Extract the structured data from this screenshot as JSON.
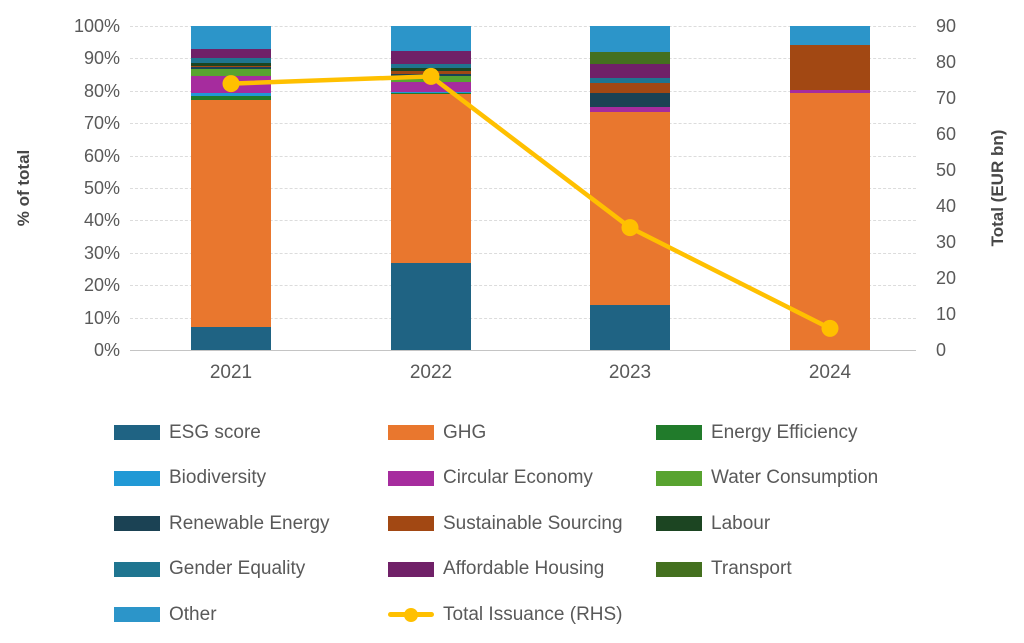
{
  "chart_data": {
    "type": "bar",
    "subtype": "stacked-100-bar-with-line",
    "title": "",
    "categories": [
      "2021",
      "2022",
      "2023",
      "2024"
    ],
    "series": [
      {
        "name": "ESG score",
        "color": "#1F6383",
        "values": [
          7.0,
          27.0,
          14.0,
          0
        ]
      },
      {
        "name": "GHG",
        "color": "#E9772E",
        "values": [
          70.3,
          52.0,
          59.5,
          79.3
        ]
      },
      {
        "name": "Energy Efficiency",
        "color": "#217B2B",
        "values": [
          1.2,
          0.3,
          0,
          0
        ]
      },
      {
        "name": "Biodiversity",
        "color": "#2199D5",
        "values": [
          0.8,
          0.2,
          0,
          0
        ]
      },
      {
        "name": "Circular Economy",
        "color": "#A62C9E",
        "values": [
          5.2,
          3.1,
          1.6,
          0.8
        ]
      },
      {
        "name": "Water Consumption",
        "color": "#58A330",
        "values": [
          2.2,
          1.9,
          0,
          0
        ]
      },
      {
        "name": "Renewable Energy",
        "color": "#1B4254",
        "values": [
          0.8,
          0.6,
          4.1,
          0
        ]
      },
      {
        "name": "Sustainable Sourcing",
        "color": "#A24813",
        "values": [
          0.3,
          0.9,
          3.3,
          14.0
        ]
      },
      {
        "name": "Labour",
        "color": "#1C4522",
        "values": [
          0.8,
          0.9,
          0,
          0
        ]
      },
      {
        "name": "Gender Equality",
        "color": "#1F7590",
        "values": [
          1.6,
          1.5,
          1.3,
          0
        ]
      },
      {
        "name": "Affordable Housing",
        "color": "#702168",
        "values": [
          2.7,
          4.0,
          4.6,
          0
        ]
      },
      {
        "name": "Transport",
        "color": "#44701F",
        "values": [
          0,
          0,
          3.6,
          0
        ]
      },
      {
        "name": "Other",
        "color": "#2C95C9",
        "values": [
          7.1,
          7.6,
          8.0,
          5.9
        ]
      }
    ],
    "line_series": {
      "name": "Total Issuance (RHS)",
      "color": "#FFC000",
      "axis": "right",
      "values": [
        74,
        76,
        34,
        6
      ]
    },
    "left_axis": {
      "label": "% of total",
      "ticks": [
        "100%",
        "90%",
        "80%",
        "70%",
        "60%",
        "50%",
        "40%",
        "30%",
        "20%",
        "10%",
        "0%"
      ],
      "min": 0,
      "max": 100
    },
    "right_axis": {
      "label": "Total (EUR bn)",
      "ticks": [
        90,
        80,
        70,
        60,
        50,
        40,
        30,
        20,
        10,
        0
      ],
      "min": 0,
      "max": 90
    },
    "grid": "horizontal-dotted",
    "legend_position": "bottom"
  }
}
